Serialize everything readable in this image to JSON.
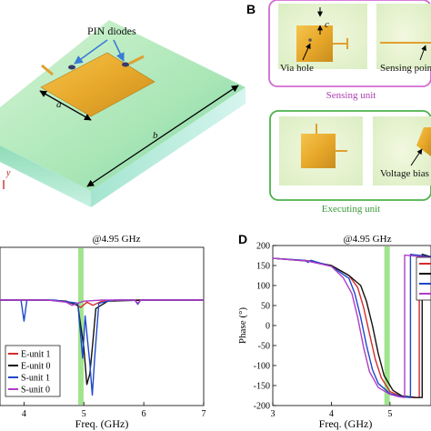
{
  "panel_a": {
    "callout": "PIN diodes",
    "dim_a": "a",
    "dim_b": "b",
    "axis_y": "y"
  },
  "panel_b": {
    "letter": "B",
    "dim_c": "c",
    "via_hole": "Via hole",
    "sensing_point": "Sensing point",
    "sensing_unit": "Sensing unit",
    "voltage_bias": "Voltage bias",
    "executing_unit": "Executing unit"
  },
  "panel_d": {
    "letter": "D"
  },
  "colors": {
    "e_unit_1": "#d62b2b",
    "e_unit_0": "#111111",
    "s_unit_1": "#1f48c9",
    "s_unit_0": "#b03cc8",
    "marker": "#8fe07a",
    "sensing_frame": "#d26ad2",
    "executing_frame": "#4cb24c"
  },
  "chart_data": [
    {
      "type": "line",
      "title": "@4.95 GHz",
      "xlabel": "Freq. (GHz)",
      "ylabel": "",
      "xlim": [
        3.6,
        7
      ],
      "ylim": [
        0,
        1.5
      ],
      "xticks": [
        4,
        5,
        6,
        7
      ],
      "marker_line_x": 4.95,
      "legend_position": "bottom-left",
      "series": [
        {
          "name": "E-unit 1",
          "x": [
            3.6,
            4.4,
            4.7,
            4.85,
            4.95,
            5.05,
            5.15,
            5.3,
            5.6,
            6.0,
            7.0
          ],
          "y": [
            1.0,
            1.0,
            0.99,
            0.96,
            0.93,
            0.98,
            0.95,
            0.99,
            1.0,
            1.0,
            1.0
          ]
        },
        {
          "name": "E-unit 0",
          "x": [
            3.6,
            4.4,
            4.7,
            4.9,
            5.0,
            5.05,
            5.1,
            5.15,
            5.2,
            5.4,
            6.0,
            7.0
          ],
          "y": [
            1.0,
            1.0,
            0.99,
            0.95,
            0.55,
            0.2,
            0.3,
            0.6,
            0.92,
            0.99,
            1.0,
            1.0
          ]
        },
        {
          "name": "S-unit 1",
          "x": [
            3.6,
            3.95,
            4.0,
            4.05,
            4.5,
            4.9,
            4.98,
            5.02,
            5.1,
            5.14,
            5.18,
            5.25,
            5.5,
            5.85,
            5.9,
            5.95,
            6.2,
            7.0
          ],
          "y": [
            1.0,
            1.0,
            0.8,
            1.0,
            1.0,
            0.97,
            0.45,
            0.85,
            0.4,
            0.1,
            0.45,
            0.97,
            1.0,
            1.0,
            0.96,
            1.0,
            1.0,
            1.0
          ]
        },
        {
          "name": "S-unit 0",
          "x": [
            3.6,
            4.4,
            4.7,
            4.8,
            4.9,
            5.0,
            5.3,
            5.85,
            5.9,
            5.95,
            7.0
          ],
          "y": [
            1.0,
            1.0,
            0.98,
            0.95,
            0.97,
            0.99,
            1.0,
            1.0,
            0.97,
            1.0,
            1.0
          ]
        }
      ]
    },
    {
      "type": "line",
      "title": "@4.95 GHz",
      "xlabel": "Freq. (GHz)",
      "ylabel": "Phase (°)",
      "xlim": [
        3,
        5.7
      ],
      "ylim": [
        -200,
        200
      ],
      "xticks": [
        3,
        4,
        5
      ],
      "yticks": [
        200,
        150,
        100,
        50,
        0,
        -50,
        -100,
        -150,
        -200
      ],
      "marker_line_x": 4.95,
      "series": [
        {
          "name": "E-unit 1",
          "x": [
            3.0,
            3.6,
            4.0,
            4.3,
            4.45,
            4.55,
            4.65,
            4.75,
            4.85,
            5.0,
            5.2,
            5.4,
            5.5,
            5.5,
            5.7
          ],
          "y": [
            168,
            162,
            150,
            125,
            95,
            45,
            -20,
            -85,
            -130,
            -165,
            -178,
            -180,
            -180,
            175,
            170
          ]
        },
        {
          "name": "E-unit 0",
          "x": [
            3.0,
            3.6,
            4.0,
            4.3,
            4.5,
            4.6,
            4.7,
            4.8,
            4.9,
            5.05,
            5.2,
            5.45,
            5.55,
            5.55,
            5.7
          ],
          "y": [
            168,
            161,
            150,
            125,
            100,
            60,
            0,
            -70,
            -125,
            -162,
            -176,
            -180,
            -180,
            178,
            172
          ]
        },
        {
          "name": "S-unit 1",
          "x": [
            3.0,
            3.55,
            3.6,
            3.65,
            4.0,
            4.3,
            4.4,
            4.5,
            4.6,
            4.7,
            4.8,
            5.0,
            5.2,
            5.35,
            5.35,
            5.7
          ],
          "y": [
            168,
            163,
            158,
            163,
            148,
            118,
            80,
            20,
            -50,
            -110,
            -145,
            -170,
            -178,
            -180,
            178,
            172
          ]
        },
        {
          "name": "S-unit 0",
          "x": [
            3.0,
            3.6,
            4.0,
            4.2,
            4.35,
            4.45,
            4.55,
            4.65,
            4.8,
            5.0,
            5.15,
            5.25,
            5.25,
            5.7
          ],
          "y": [
            168,
            161,
            148,
            120,
            80,
            20,
            -55,
            -115,
            -155,
            -172,
            -178,
            -180,
            176,
            170
          ]
        }
      ]
    }
  ]
}
